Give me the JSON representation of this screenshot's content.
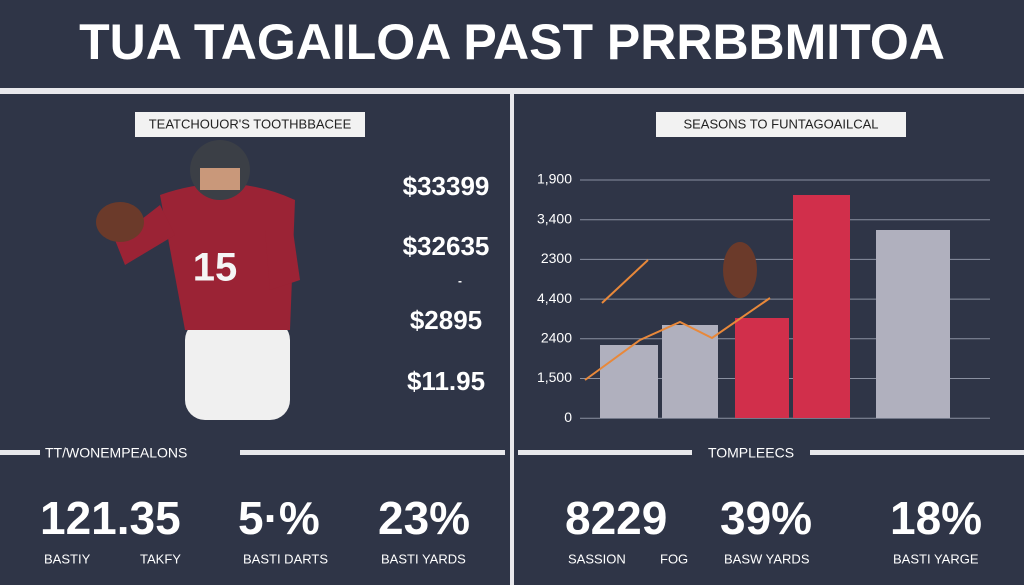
{
  "header": {
    "title": "TUA TAGAILOA PAST PRRBBMITOA"
  },
  "left_panel": {
    "label": "TEATCHOUOR'S TOOTHBBACEE",
    "values": [
      "$33399",
      "$32635",
      "-",
      "$2895",
      "$11.95"
    ]
  },
  "right_panel": {
    "label": "SEASONS TO FUNTAGOAILCAL",
    "axis_labels": [
      "1,900",
      "3,400",
      "2300",
      "4,400",
      "2400",
      "1,500",
      "0"
    ]
  },
  "bottom_left": {
    "label": "TT/WONEMPEALONS",
    "stats": [
      {
        "value": "121.35",
        "labels": [
          "BASTIY",
          "TAKFY"
        ]
      },
      {
        "value": "5·%",
        "labels": [
          "BASTI DARTS"
        ]
      },
      {
        "value": "23%",
        "labels": [
          "BASTI YARDS"
        ]
      }
    ]
  },
  "bottom_right": {
    "label": "TOMPLEECS",
    "stats": [
      {
        "value": "8229",
        "labels": [
          "SASSION",
          "FOG"
        ]
      },
      {
        "value": "39%",
        "labels": [
          "BASW YARDS"
        ]
      },
      {
        "value": "18%",
        "labels": [
          "BASTI YARGE"
        ]
      }
    ]
  }
}
